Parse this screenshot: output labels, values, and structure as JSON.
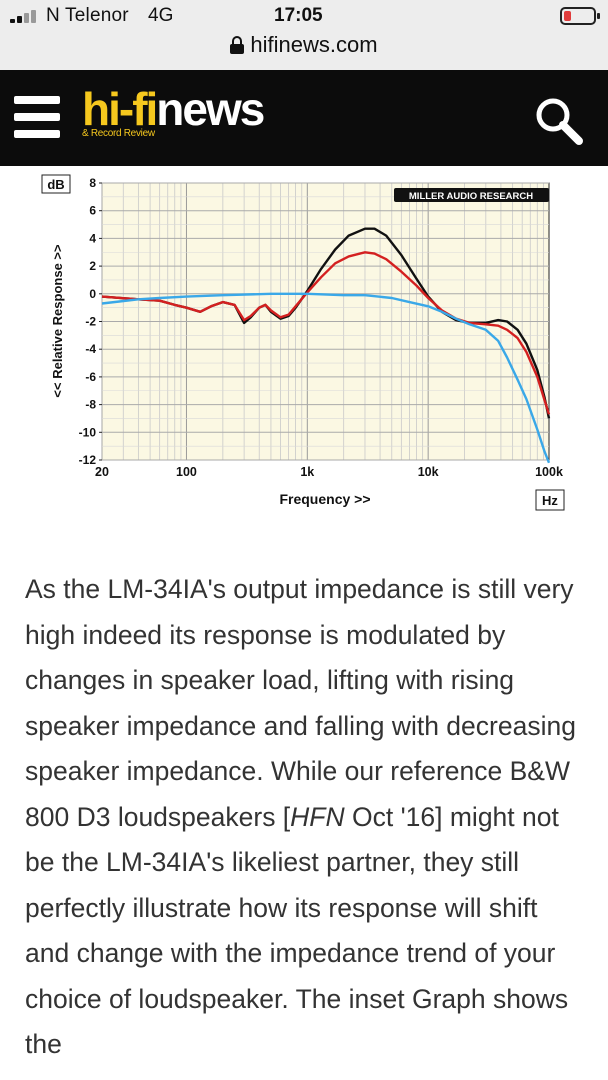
{
  "status_bar": {
    "carrier": "N Telenor",
    "network": "4G",
    "time": "17:05",
    "url": "hifinews.com",
    "battery_color": "#e03b3b"
  },
  "header": {
    "logo_hifi": "hi-fi",
    "logo_news": "news",
    "logo_sub": "& Record Review",
    "brand_color": "#f6c81e"
  },
  "chart_data": {
    "type": "line",
    "y_unit_label": "dB",
    "x_unit_label": "Hz",
    "xlabel": "Frequency >>",
    "ylabel": "<< Relative Response >>",
    "brand": "MILLER AUDIO RESEARCH",
    "xscale": "log",
    "xlim": [
      20,
      100000
    ],
    "ylim": [
      -12,
      8
    ],
    "yticks": [
      8,
      6,
      4,
      2,
      0,
      -2,
      -4,
      -6,
      -8,
      -10,
      -12
    ],
    "xticks": [
      {
        "v": 20,
        "label": "20"
      },
      {
        "v": 100,
        "label": "100"
      },
      {
        "v": 1000,
        "label": "1k"
      },
      {
        "v": 10000,
        "label": "10k"
      },
      {
        "v": 100000,
        "label": "100k"
      }
    ],
    "series": [
      {
        "name": "black",
        "color": "#111111",
        "points": [
          [
            20,
            -0.2
          ],
          [
            40,
            -0.4
          ],
          [
            60,
            -0.5
          ],
          [
            80,
            -0.8
          ],
          [
            100,
            -1.0
          ],
          [
            130,
            -1.3
          ],
          [
            160,
            -0.9
          ],
          [
            200,
            -0.6
          ],
          [
            250,
            -0.8
          ],
          [
            300,
            -2.1
          ],
          [
            340,
            -1.7
          ],
          [
            400,
            -1.0
          ],
          [
            450,
            -0.8
          ],
          [
            500,
            -1.3
          ],
          [
            600,
            -1.8
          ],
          [
            700,
            -1.6
          ],
          [
            800,
            -1.0
          ],
          [
            1000,
            0.2
          ],
          [
            1300,
            1.8
          ],
          [
            1700,
            3.2
          ],
          [
            2200,
            4.2
          ],
          [
            3000,
            4.7
          ],
          [
            3600,
            4.7
          ],
          [
            4500,
            4.2
          ],
          [
            6000,
            2.8
          ],
          [
            8000,
            1.1
          ],
          [
            10000,
            -0.2
          ],
          [
            13000,
            -1.3
          ],
          [
            17000,
            -1.9
          ],
          [
            22000,
            -2.1
          ],
          [
            30000,
            -2.1
          ],
          [
            38000,
            -1.9
          ],
          [
            45000,
            -2.0
          ],
          [
            55000,
            -2.6
          ],
          [
            65000,
            -3.6
          ],
          [
            80000,
            -5.5
          ],
          [
            92000,
            -7.5
          ],
          [
            100000,
            -9.0
          ]
        ]
      },
      {
        "name": "red",
        "color": "#d42020",
        "points": [
          [
            20,
            -0.2
          ],
          [
            40,
            -0.4
          ],
          [
            60,
            -0.5
          ],
          [
            80,
            -0.8
          ],
          [
            100,
            -1.0
          ],
          [
            130,
            -1.3
          ],
          [
            160,
            -0.9
          ],
          [
            200,
            -0.6
          ],
          [
            250,
            -0.8
          ],
          [
            300,
            -1.9
          ],
          [
            340,
            -1.6
          ],
          [
            400,
            -1.0
          ],
          [
            450,
            -0.8
          ],
          [
            500,
            -1.2
          ],
          [
            600,
            -1.7
          ],
          [
            700,
            -1.5
          ],
          [
            800,
            -0.9
          ],
          [
            1000,
            0.1
          ],
          [
            1300,
            1.2
          ],
          [
            1700,
            2.2
          ],
          [
            2200,
            2.7
          ],
          [
            3000,
            3.0
          ],
          [
            3600,
            2.9
          ],
          [
            4500,
            2.5
          ],
          [
            6000,
            1.6
          ],
          [
            8000,
            0.6
          ],
          [
            10000,
            -0.3
          ],
          [
            13000,
            -1.2
          ],
          [
            17000,
            -1.8
          ],
          [
            22000,
            -2.1
          ],
          [
            30000,
            -2.2
          ],
          [
            38000,
            -2.3
          ],
          [
            45000,
            -2.6
          ],
          [
            55000,
            -3.2
          ],
          [
            65000,
            -4.2
          ],
          [
            80000,
            -6.0
          ],
          [
            92000,
            -7.7
          ],
          [
            100000,
            -8.7
          ]
        ]
      },
      {
        "name": "blue",
        "color": "#3aa8e8",
        "points": [
          [
            20,
            -0.7
          ],
          [
            40,
            -0.4
          ],
          [
            60,
            -0.3
          ],
          [
            100,
            -0.2
          ],
          [
            200,
            -0.1
          ],
          [
            500,
            0.0
          ],
          [
            1000,
            0.0
          ],
          [
            2000,
            -0.1
          ],
          [
            3000,
            -0.1
          ],
          [
            5000,
            -0.3
          ],
          [
            7000,
            -0.6
          ],
          [
            10000,
            -0.9
          ],
          [
            13000,
            -1.3
          ],
          [
            17000,
            -1.8
          ],
          [
            22000,
            -2.2
          ],
          [
            30000,
            -2.6
          ],
          [
            38000,
            -3.4
          ],
          [
            45000,
            -4.6
          ],
          [
            55000,
            -6.2
          ],
          [
            65000,
            -7.6
          ],
          [
            80000,
            -9.8
          ],
          [
            92000,
            -11.4
          ],
          [
            100000,
            -12.2
          ]
        ]
      }
    ]
  },
  "article": {
    "p1": "As the LM-34IA's output impedance is still very high indeed its response is modulated by changes in speaker load, lifting with rising speaker impedance and falling with decreasing speaker impedance. While our reference B&W 800 D3 loudspeakers [",
    "ref_italic": "HFN",
    "p2": " Oct '16] might not be the LM-34IA's likeliest partner, they still perfectly illustrate how its response will shift and change with the impedance trend of your choice of loudspeaker. The inset Graph shows the"
  }
}
